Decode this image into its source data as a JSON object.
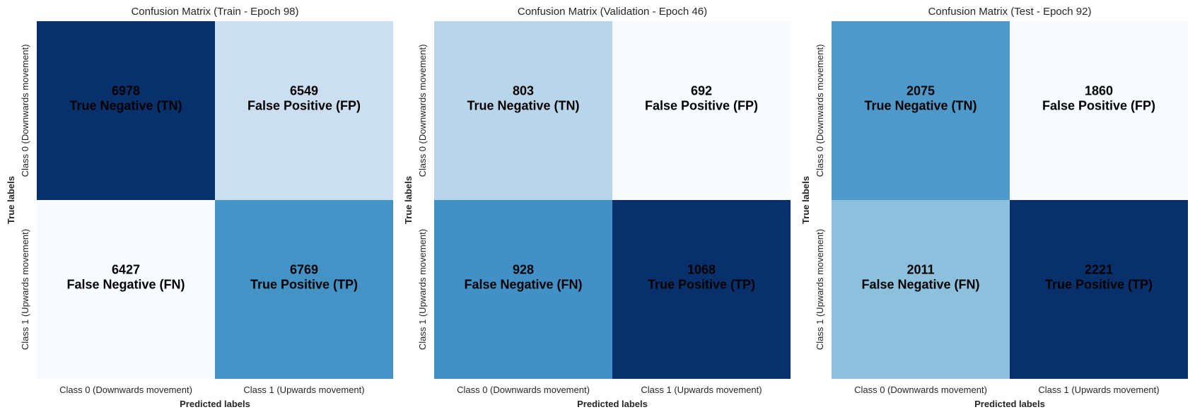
{
  "chart_data": [
    {
      "type": "heatmap",
      "title": "Confusion Matrix (Train - Epoch 98)",
      "xlabel": "Predicted labels",
      "ylabel": "True labels",
      "x_categories": [
        "Class 0 (Downwards movement)",
        "Class 1 (Upwards movement)"
      ],
      "y_categories": [
        "Class 0 (Downwards movement)",
        "Class 1 (Upwards movement)"
      ],
      "values": [
        [
          6978,
          6549
        ],
        [
          6427,
          6769
        ]
      ],
      "cell_labels": [
        [
          "True Negative (TN)",
          "False Positive (FP)"
        ],
        [
          "False Negative (FN)",
          "True Positive (TP)"
        ]
      ],
      "colormap": "Blues"
    },
    {
      "type": "heatmap",
      "title": "Confusion Matrix (Validation - Epoch 46)",
      "xlabel": "Predicted labels",
      "ylabel": "True labels",
      "x_categories": [
        "Class 0 (Downwards movement)",
        "Class 1 (Upwards movement)"
      ],
      "y_categories": [
        "Class 0 (Downwards movement)",
        "Class 1 (Upwards movement)"
      ],
      "values": [
        [
          803,
          692
        ],
        [
          928,
          1068
        ]
      ],
      "cell_labels": [
        [
          "True Negative (TN)",
          "False Positive (FP)"
        ],
        [
          "False Negative (FN)",
          "True Positive (TP)"
        ]
      ],
      "colormap": "Blues"
    },
    {
      "type": "heatmap",
      "title": "Confusion Matrix (Test - Epoch 92)",
      "xlabel": "Predicted labels",
      "ylabel": "True labels",
      "x_categories": [
        "Class 0 (Downwards movement)",
        "Class 1 (Upwards movement)"
      ],
      "y_categories": [
        "Class 0 (Downwards movement)",
        "Class 1 (Upwards movement)"
      ],
      "values": [
        [
          2075,
          1860
        ],
        [
          2011,
          2221
        ]
      ],
      "cell_labels": [
        [
          "True Negative (TN)",
          "False Positive (FP)"
        ],
        [
          "False Negative (FN)",
          "True Positive (TP)"
        ]
      ],
      "colormap": "Blues"
    }
  ],
  "colors": {
    "blues_low": "#f7fbff",
    "blues_high": "#08306b",
    "cell_text": "#000000",
    "axis_text": "#262626"
  }
}
